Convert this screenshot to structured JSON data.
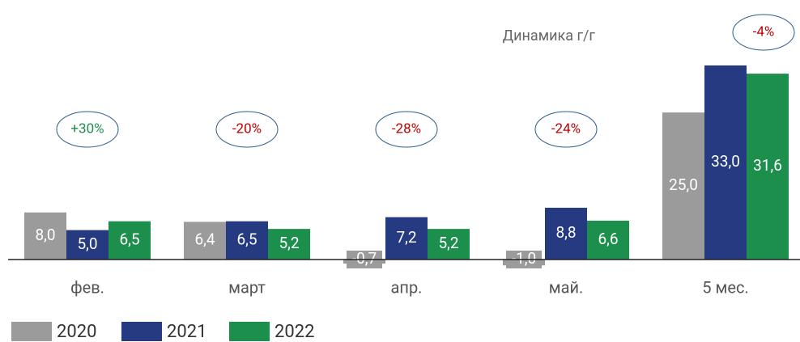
{
  "chart_data": {
    "type": "bar",
    "categories": [
      "фев.",
      "март",
      "апр.",
      "май.",
      "5 мес."
    ],
    "series": [
      {
        "name": "2020",
        "color": "#9b9b9b",
        "values": [
          8.0,
          6.4,
          -0.7,
          -1.0,
          25.0
        ],
        "value_labels": [
          "8,0",
          "6,4",
          "-0,7",
          "-1,0",
          "25,0"
        ]
      },
      {
        "name": "2021",
        "color": "#253a80",
        "values": [
          5.0,
          6.5,
          7.2,
          8.8,
          33.0
        ],
        "value_labels": [
          "5,0",
          "6,5",
          "7,2",
          "8,8",
          "33,0"
        ]
      },
      {
        "name": "2022",
        "color": "#1d8f4d",
        "values": [
          6.5,
          5.2,
          5.2,
          6.6,
          31.6
        ],
        "value_labels": [
          "6,5",
          "5,2",
          "5,2",
          "6,6",
          "31,6"
        ]
      }
    ],
    "changes": [
      "+30%",
      "-20%",
      "-28%",
      "-24%",
      "-4%"
    ],
    "change_label": "Динамика г/г",
    "positive_color": "#1d8f4d",
    "negative_color": "#c00000",
    "ylim": [
      -2,
      40
    ]
  }
}
